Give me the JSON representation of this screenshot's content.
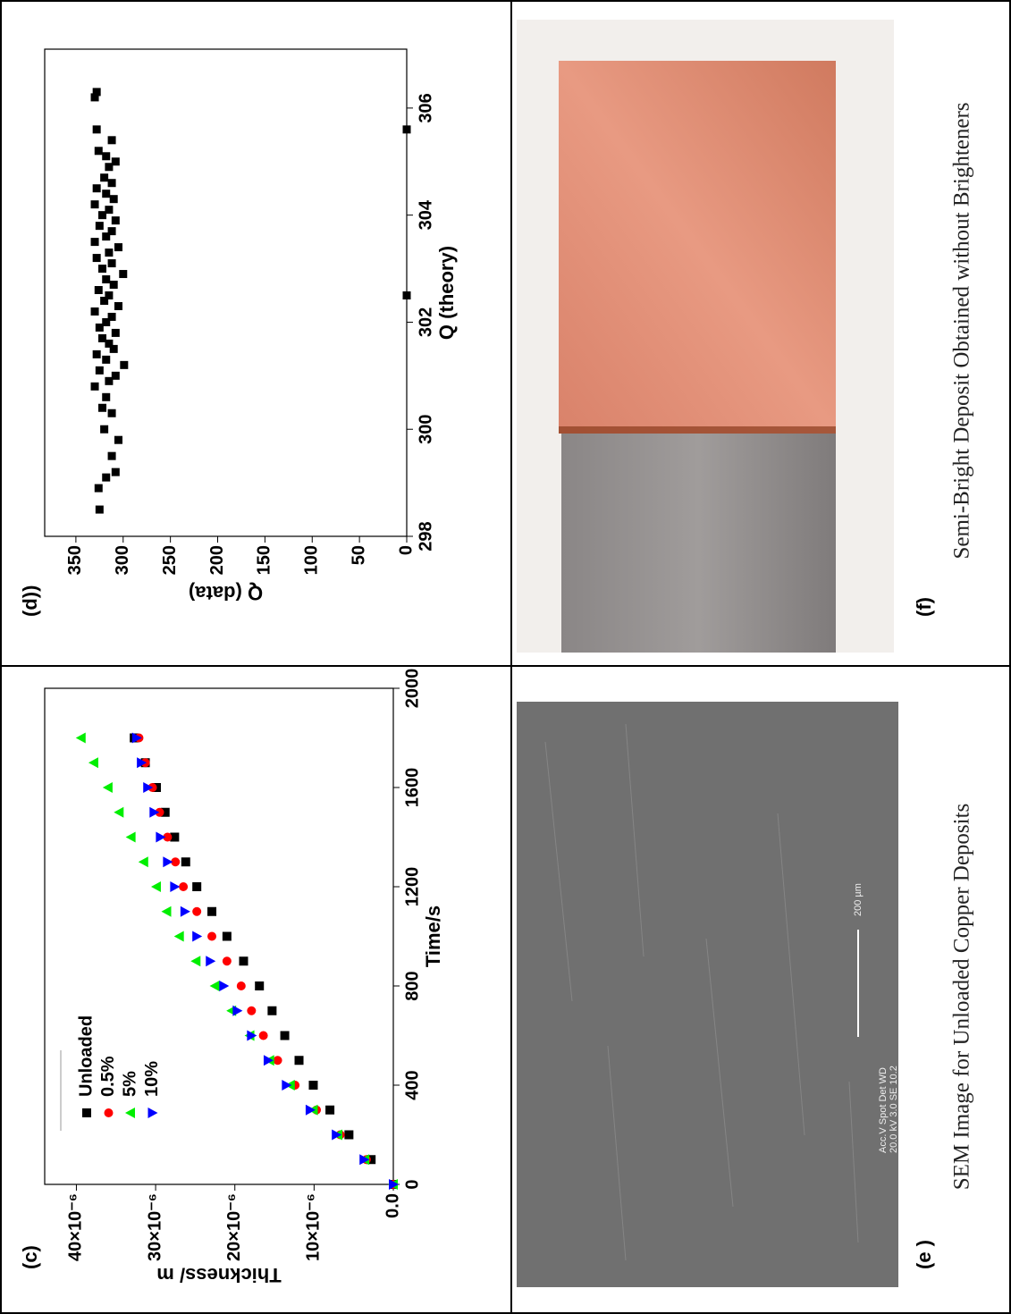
{
  "figure": {
    "panel_labels": [
      "(c)",
      "(d))",
      "(e )",
      "(f)"
    ],
    "captions": [
      "SEM Image for Unloaded Copper Deposits",
      "Semi-Bright Deposit Obtained without Brighteners"
    ],
    "sem_overlay": [
      "Acc.V   Spot Det   WD",
      "20.0 kV  3.0    SE   10.2",
      "200 µm"
    ]
  },
  "chart_data": [
    {
      "type": "scatter",
      "x_label": "Time/s",
      "y_label": "Thickness/ m",
      "x": [
        0,
        100,
        200,
        300,
        400,
        500,
        600,
        700,
        800,
        900,
        1000,
        1100,
        1200,
        1300,
        1400,
        1500,
        1600,
        1700,
        1800
      ],
      "series": [
        {
          "name": "Unloaded",
          "color": "#000000",
          "marker": "square",
          "values": [
            0,
            2.8e-06,
            5.6e-06,
            8e-06,
            1.01e-05,
            1.19e-05,
            1.37e-05,
            1.53e-05,
            1.69e-05,
            1.89e-05,
            2.1e-05,
            2.29e-05,
            2.48e-05,
            2.62e-05,
            2.76e-05,
            2.88e-05,
            2.99e-05,
            3.13e-05,
            3.27e-05
          ]
        },
        {
          "name": "0.5%",
          "color": "#ff0000",
          "marker": "circle",
          "values": [
            0,
            3.4e-06,
            6.7e-06,
            9.7e-06,
            1.24e-05,
            1.46e-05,
            1.64e-05,
            1.79e-05,
            1.92e-05,
            2.1e-05,
            2.29e-05,
            2.48e-05,
            2.65e-05,
            2.75e-05,
            2.85e-05,
            2.95e-05,
            3.04e-05,
            3.13e-05,
            3.21e-05
          ]
        },
        {
          "name": "5%",
          "color": "#00ee00",
          "marker": "triangle-up",
          "values": [
            0,
            3.6e-06,
            7e-06,
            1.01e-05,
            1.3e-05,
            1.56e-05,
            1.81e-05,
            2.04e-05,
            2.25e-05,
            2.49e-05,
            2.7e-05,
            2.86e-05,
            2.99e-05,
            3.15e-05,
            3.31e-05,
            3.46e-05,
            3.6e-05,
            3.78e-05,
            3.94e-05
          ]
        },
        {
          "name": "10%",
          "color": "#0000ff",
          "marker": "triangle-down",
          "values": [
            0,
            3.7e-06,
            7.2e-06,
            1.05e-05,
            1.35e-05,
            1.58e-05,
            1.79e-05,
            1.97e-05,
            2.14e-05,
            2.31e-05,
            2.48e-05,
            2.63e-05,
            2.76e-05,
            2.85e-05,
            2.94e-05,
            3.02e-05,
            3.1e-05,
            3.18e-05,
            3.24e-05
          ]
        }
      ],
      "xlim": [
        0,
        2000
      ],
      "xticks": [
        0,
        400,
        800,
        1200,
        1600,
        2000
      ],
      "ylim": [
        0,
        4.4e-05
      ],
      "yticks": [
        {
          "value": 0,
          "label": "0.0"
        },
        {
          "value": 1e-05,
          "label": "10×10⁻⁶"
        },
        {
          "value": 2e-05,
          "label": "20×10⁻⁶"
        },
        {
          "value": 3e-05,
          "label": "30×10⁻⁶"
        },
        {
          "value": 4e-05,
          "label": "40×10⁻⁶"
        }
      ],
      "legend": "upper left"
    },
    {
      "type": "scatter",
      "x_label": "Q (theory)",
      "y_label": "Q (data)",
      "color": "#000000",
      "x": [
        298.5,
        298.9,
        299.2,
        299.1,
        299.5,
        299.8,
        300.0,
        300.3,
        300.4,
        300.6,
        300.8,
        300.9,
        301.0,
        301.1,
        301.2,
        301.3,
        301.4,
        301.5,
        301.6,
        301.7,
        301.8,
        301.9,
        302.0,
        302.1,
        302.2,
        302.3,
        302.4,
        302.5,
        302.6,
        302.7,
        302.8,
        302.9,
        303.0,
        303.1,
        303.2,
        303.3,
        303.4,
        303.5,
        303.6,
        303.7,
        303.8,
        303.9,
        304.0,
        304.1,
        304.2,
        304.3,
        304.4,
        304.5,
        304.6,
        304.7,
        304.9,
        305.0,
        305.1,
        305.2,
        305.4,
        305.6,
        306.2,
        306.3,
        302.5,
        305.6
      ],
      "values": [
        325,
        326,
        308,
        318,
        312,
        305,
        320,
        312,
        322,
        318,
        330,
        315,
        308,
        325,
        299,
        318,
        328,
        310,
        315,
        322,
        308,
        325,
        318,
        312,
        330,
        305,
        320,
        315,
        326,
        310,
        318,
        300,
        322,
        312,
        328,
        315,
        305,
        330,
        318,
        312,
        325,
        308,
        322,
        315,
        330,
        310,
        318,
        328,
        312,
        320,
        315,
        308,
        318,
        326,
        312,
        328,
        330,
        328,
        0,
        0
      ],
      "xlim": [
        298,
        307.1
      ],
      "xticks": [
        298,
        300,
        302,
        304,
        306
      ],
      "ylim": [
        0,
        383
      ],
      "yticks": [
        0,
        50,
        100,
        150,
        200,
        250,
        300,
        350
      ]
    }
  ]
}
